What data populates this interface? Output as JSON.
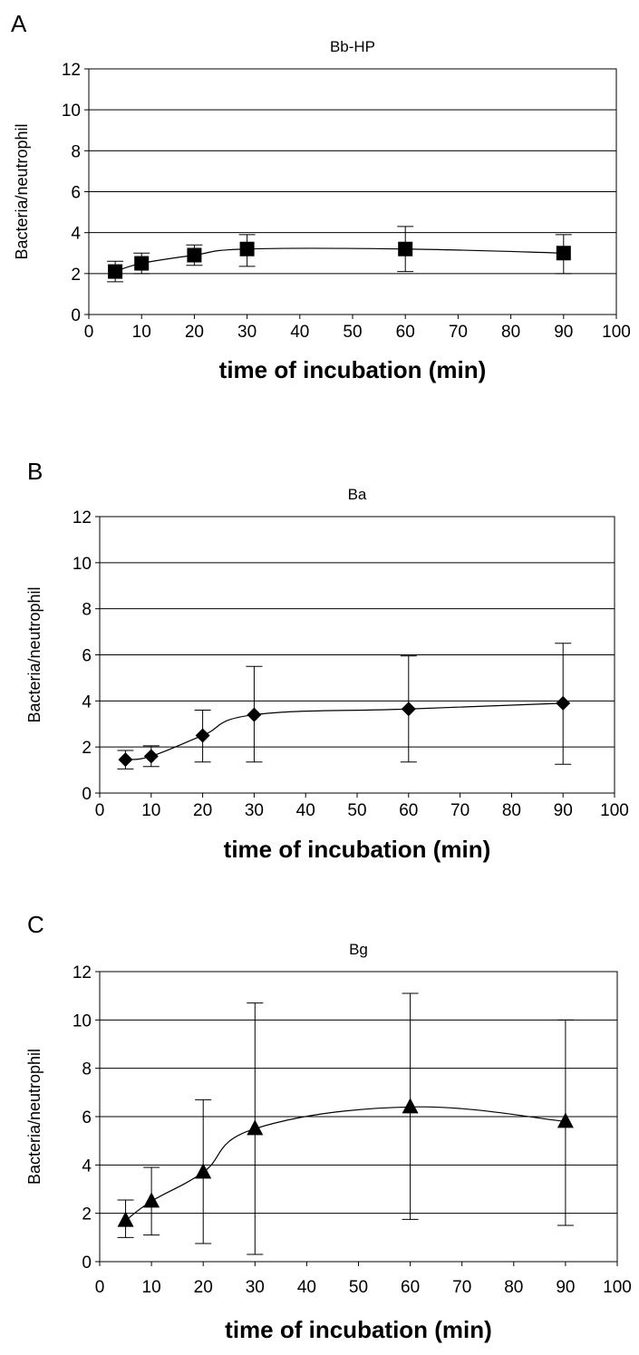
{
  "chart_data": [
    {
      "panel": "A",
      "type": "line",
      "title": "Bb-HP",
      "xlabel": "time of incubation (min)",
      "ylabel": "Bacteria/neutrophil",
      "xlim": [
        0,
        100
      ],
      "ylim": [
        0,
        12
      ],
      "x_ticks": [
        0,
        10,
        20,
        30,
        40,
        50,
        60,
        70,
        80,
        90,
        100
      ],
      "y_ticks": [
        0,
        2,
        4,
        6,
        8,
        10,
        12
      ],
      "grid": "horizontal",
      "marker": "square",
      "series": [
        {
          "x": [
            5,
            10,
            20,
            30,
            60,
            90
          ],
          "y": [
            2.1,
            2.5,
            2.9,
            3.2,
            3.2,
            3.0
          ],
          "err_low": [
            1.6,
            2.0,
            2.4,
            2.35,
            2.1,
            2.0
          ],
          "err_high": [
            2.6,
            3.0,
            3.4,
            3.9,
            4.3,
            3.9
          ]
        }
      ]
    },
    {
      "panel": "B",
      "type": "line",
      "title": "Ba",
      "xlabel": "time of incubation (min)",
      "ylabel": "Bacteria/neutrophil",
      "xlim": [
        0,
        100
      ],
      "ylim": [
        0,
        12
      ],
      "x_ticks": [
        0,
        10,
        20,
        30,
        40,
        50,
        60,
        70,
        80,
        90,
        100
      ],
      "y_ticks": [
        0,
        2,
        4,
        6,
        8,
        10,
        12
      ],
      "grid": "horizontal",
      "marker": "diamond",
      "series": [
        {
          "x": [
            5,
            10,
            20,
            30,
            60,
            90
          ],
          "y": [
            1.45,
            1.6,
            2.5,
            3.4,
            3.65,
            3.9
          ],
          "err_low": [
            1.05,
            1.15,
            1.35,
            1.35,
            1.35,
            1.25
          ],
          "err_high": [
            1.85,
            2.05,
            3.6,
            5.5,
            5.95,
            6.5
          ]
        }
      ]
    },
    {
      "panel": "C",
      "type": "line",
      "title": "Bg",
      "xlabel": "time of incubation (min)",
      "ylabel": "Bacteria/neutrophil",
      "xlim": [
        0,
        100
      ],
      "ylim": [
        0,
        12
      ],
      "x_ticks": [
        0,
        10,
        20,
        30,
        40,
        50,
        60,
        70,
        80,
        90,
        100
      ],
      "y_ticks": [
        0,
        2,
        4,
        6,
        8,
        10,
        12
      ],
      "grid": "horizontal",
      "marker": "triangle",
      "series": [
        {
          "x": [
            5,
            10,
            20,
            30,
            60,
            90
          ],
          "y": [
            1.7,
            2.5,
            3.7,
            5.5,
            6.4,
            5.8
          ],
          "err_low": [
            1.0,
            1.1,
            0.75,
            0.3,
            1.75,
            1.5
          ],
          "err_high": [
            2.55,
            3.9,
            6.7,
            10.7,
            11.1,
            10.0
          ]
        }
      ]
    }
  ]
}
